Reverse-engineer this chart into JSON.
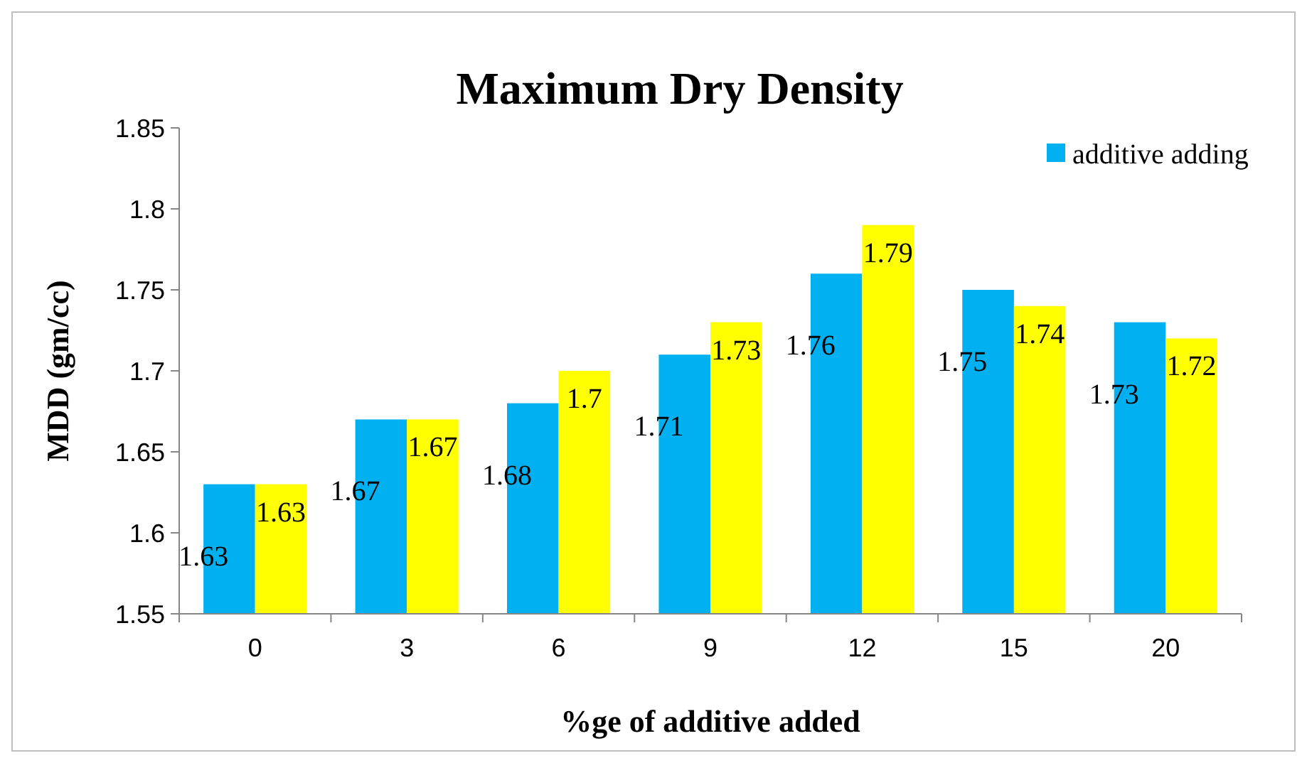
{
  "chart_data": {
    "type": "bar",
    "title": "Maximum Dry Density",
    "xlabel": "%ge of additive added",
    "ylabel": "MDD (gm/cc)",
    "categories": [
      "0",
      "3",
      "6",
      "9",
      "12",
      "15",
      "20"
    ],
    "series": [
      {
        "name": "additive adding",
        "color": "#00b0f0",
        "values": [
          1.63,
          1.67,
          1.68,
          1.71,
          1.76,
          1.75,
          1.73
        ]
      },
      {
        "color": "#ffff00",
        "values": [
          1.63,
          1.67,
          1.7,
          1.73,
          1.79,
          1.74,
          1.72
        ]
      }
    ],
    "ylim": [
      1.55,
      1.85
    ],
    "yticks": [
      1.55,
      1.6,
      1.65,
      1.7,
      1.75,
      1.8,
      1.85
    ],
    "grid": false,
    "legend": "top right",
    "data_labels": true
  }
}
